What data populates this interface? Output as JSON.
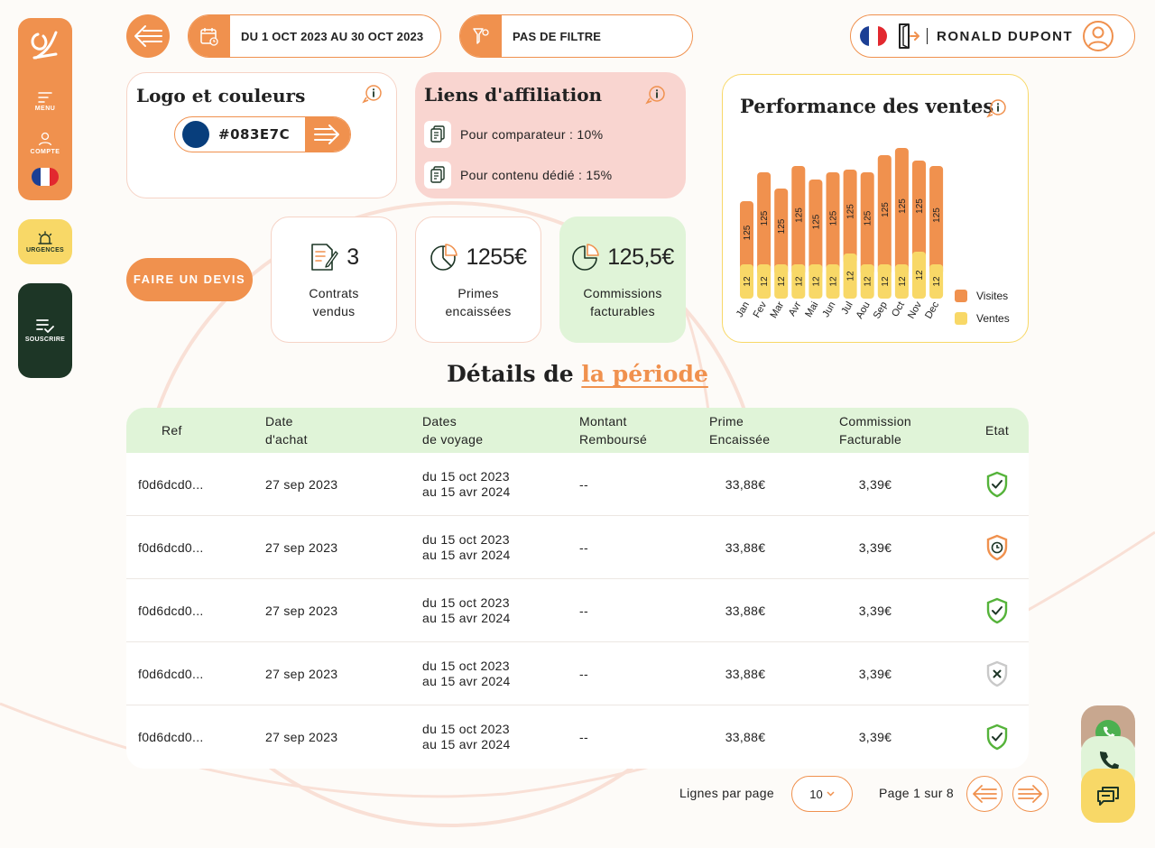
{
  "colors": {
    "accent": "#f0914e",
    "yellow": "#f8d867",
    "dark_green": "#1d3626",
    "light_green": "#e0f4d8",
    "pink": "#f9d5d0",
    "brand_color": "#083E7C"
  },
  "sidebar": {
    "menu_label": "MENU",
    "account_label": "COMPTE",
    "urgences_label": "URGENCES",
    "souscrire_label": "SOUSCRIRE"
  },
  "topbar": {
    "date_range": "DU 1 OCT 2023 AU 30 OCT 2023",
    "filter": "PAS DE FILTRE",
    "user_name": "RONALD DUPONT"
  },
  "logo_card": {
    "title": "Logo et couleurs",
    "color_code": "#083E7C"
  },
  "affiliation_card": {
    "title": "Liens d'affiliation",
    "links": [
      {
        "label": "Pour comparateur : 10%"
      },
      {
        "label": "Pour contenu dédié : 15%"
      }
    ]
  },
  "devis_button": "FAIRE UN DEVIS",
  "stats": [
    {
      "value": "3",
      "label_line1": "Contrats",
      "label_line2": "vendus",
      "icon": "contract-icon"
    },
    {
      "value": "1255€",
      "label_line1": "Primes",
      "label_line2": "encaissées",
      "icon": "pie-icon"
    },
    {
      "value": "125,5€",
      "label_line1": "Commissions",
      "label_line2": "facturables",
      "icon": "pie-icon"
    }
  ],
  "chart_data": {
    "type": "bar",
    "title": "Performance des ventes",
    "categories": [
      "Jan",
      "Fev",
      "Mar",
      "Avr",
      "Mai",
      "Jun",
      "Jul",
      "Aou",
      "Sep",
      "Oct",
      "Nov",
      "Dec"
    ],
    "series": [
      {
        "name": "Visites",
        "values": [
          125,
          125,
          125,
          125,
          125,
          125,
          125,
          125,
          125,
          125,
          125,
          125
        ],
        "color": "#f0914e",
        "heights": [
          70,
          102,
          84,
          109,
          94,
          102,
          93,
          102,
          121,
          129,
          101,
          109
        ]
      },
      {
        "name": "Ventes",
        "values": [
          12,
          12,
          12,
          12,
          12,
          12,
          12,
          12,
          12,
          12,
          12,
          12
        ],
        "color": "#f8d867",
        "heights": [
          38,
          38,
          38,
          38,
          38,
          38,
          50,
          38,
          38,
          38,
          52,
          38
        ]
      }
    ],
    "stacked": true,
    "legend_position": "bottom-right"
  },
  "section": {
    "title_prefix": "Détails de",
    "title_highlight": "la période"
  },
  "table": {
    "headers": {
      "ref": "Ref",
      "date_l1": "Date",
      "date_l2": "d'achat",
      "voy_l1": "Dates",
      "voy_l2": "de voyage",
      "mont_l1": "Montant",
      "mont_l2": "Remboursé",
      "prime_l1": "Prime",
      "prime_l2": "Encaissée",
      "comm_l1": "Commission",
      "comm_l2": "Facturable",
      "etat": "Etat"
    },
    "rows": [
      {
        "ref": "f0d6dcd0...",
        "date": "27 sep 2023",
        "voy_l1": "du 15 oct 2023",
        "voy_l2": "au 15 avr 2024",
        "montant": "--",
        "prime": "33,88€",
        "comm": "3,39€",
        "status": "valid"
      },
      {
        "ref": "f0d6dcd0...",
        "date": "27 sep 2023",
        "voy_l1": "du 15 oct 2023",
        "voy_l2": "au 15 avr 2024",
        "montant": "--",
        "prime": "33,88€",
        "comm": "3,39€",
        "status": "pending"
      },
      {
        "ref": "f0d6dcd0...",
        "date": "27 sep 2023",
        "voy_l1": "du 15 oct 2023",
        "voy_l2": "au 15 avr 2024",
        "montant": "--",
        "prime": "33,88€",
        "comm": "3,39€",
        "status": "valid"
      },
      {
        "ref": "f0d6dcd0...",
        "date": "27 sep 2023",
        "voy_l1": "du 15 oct 2023",
        "voy_l2": "au 15 avr 2024",
        "montant": "--",
        "prime": "33,88€",
        "comm": "3,39€",
        "status": "cancelled"
      },
      {
        "ref": "f0d6dcd0...",
        "date": "27 sep 2023",
        "voy_l1": "du 15 oct 2023",
        "voy_l2": "au 15 avr 2024",
        "montant": "--",
        "prime": "33,88€",
        "comm": "3,39€",
        "status": "valid"
      }
    ]
  },
  "pagination": {
    "rows_label": "Lignes par page",
    "rows_value": "10",
    "page_label": "Page 1 sur 8"
  }
}
